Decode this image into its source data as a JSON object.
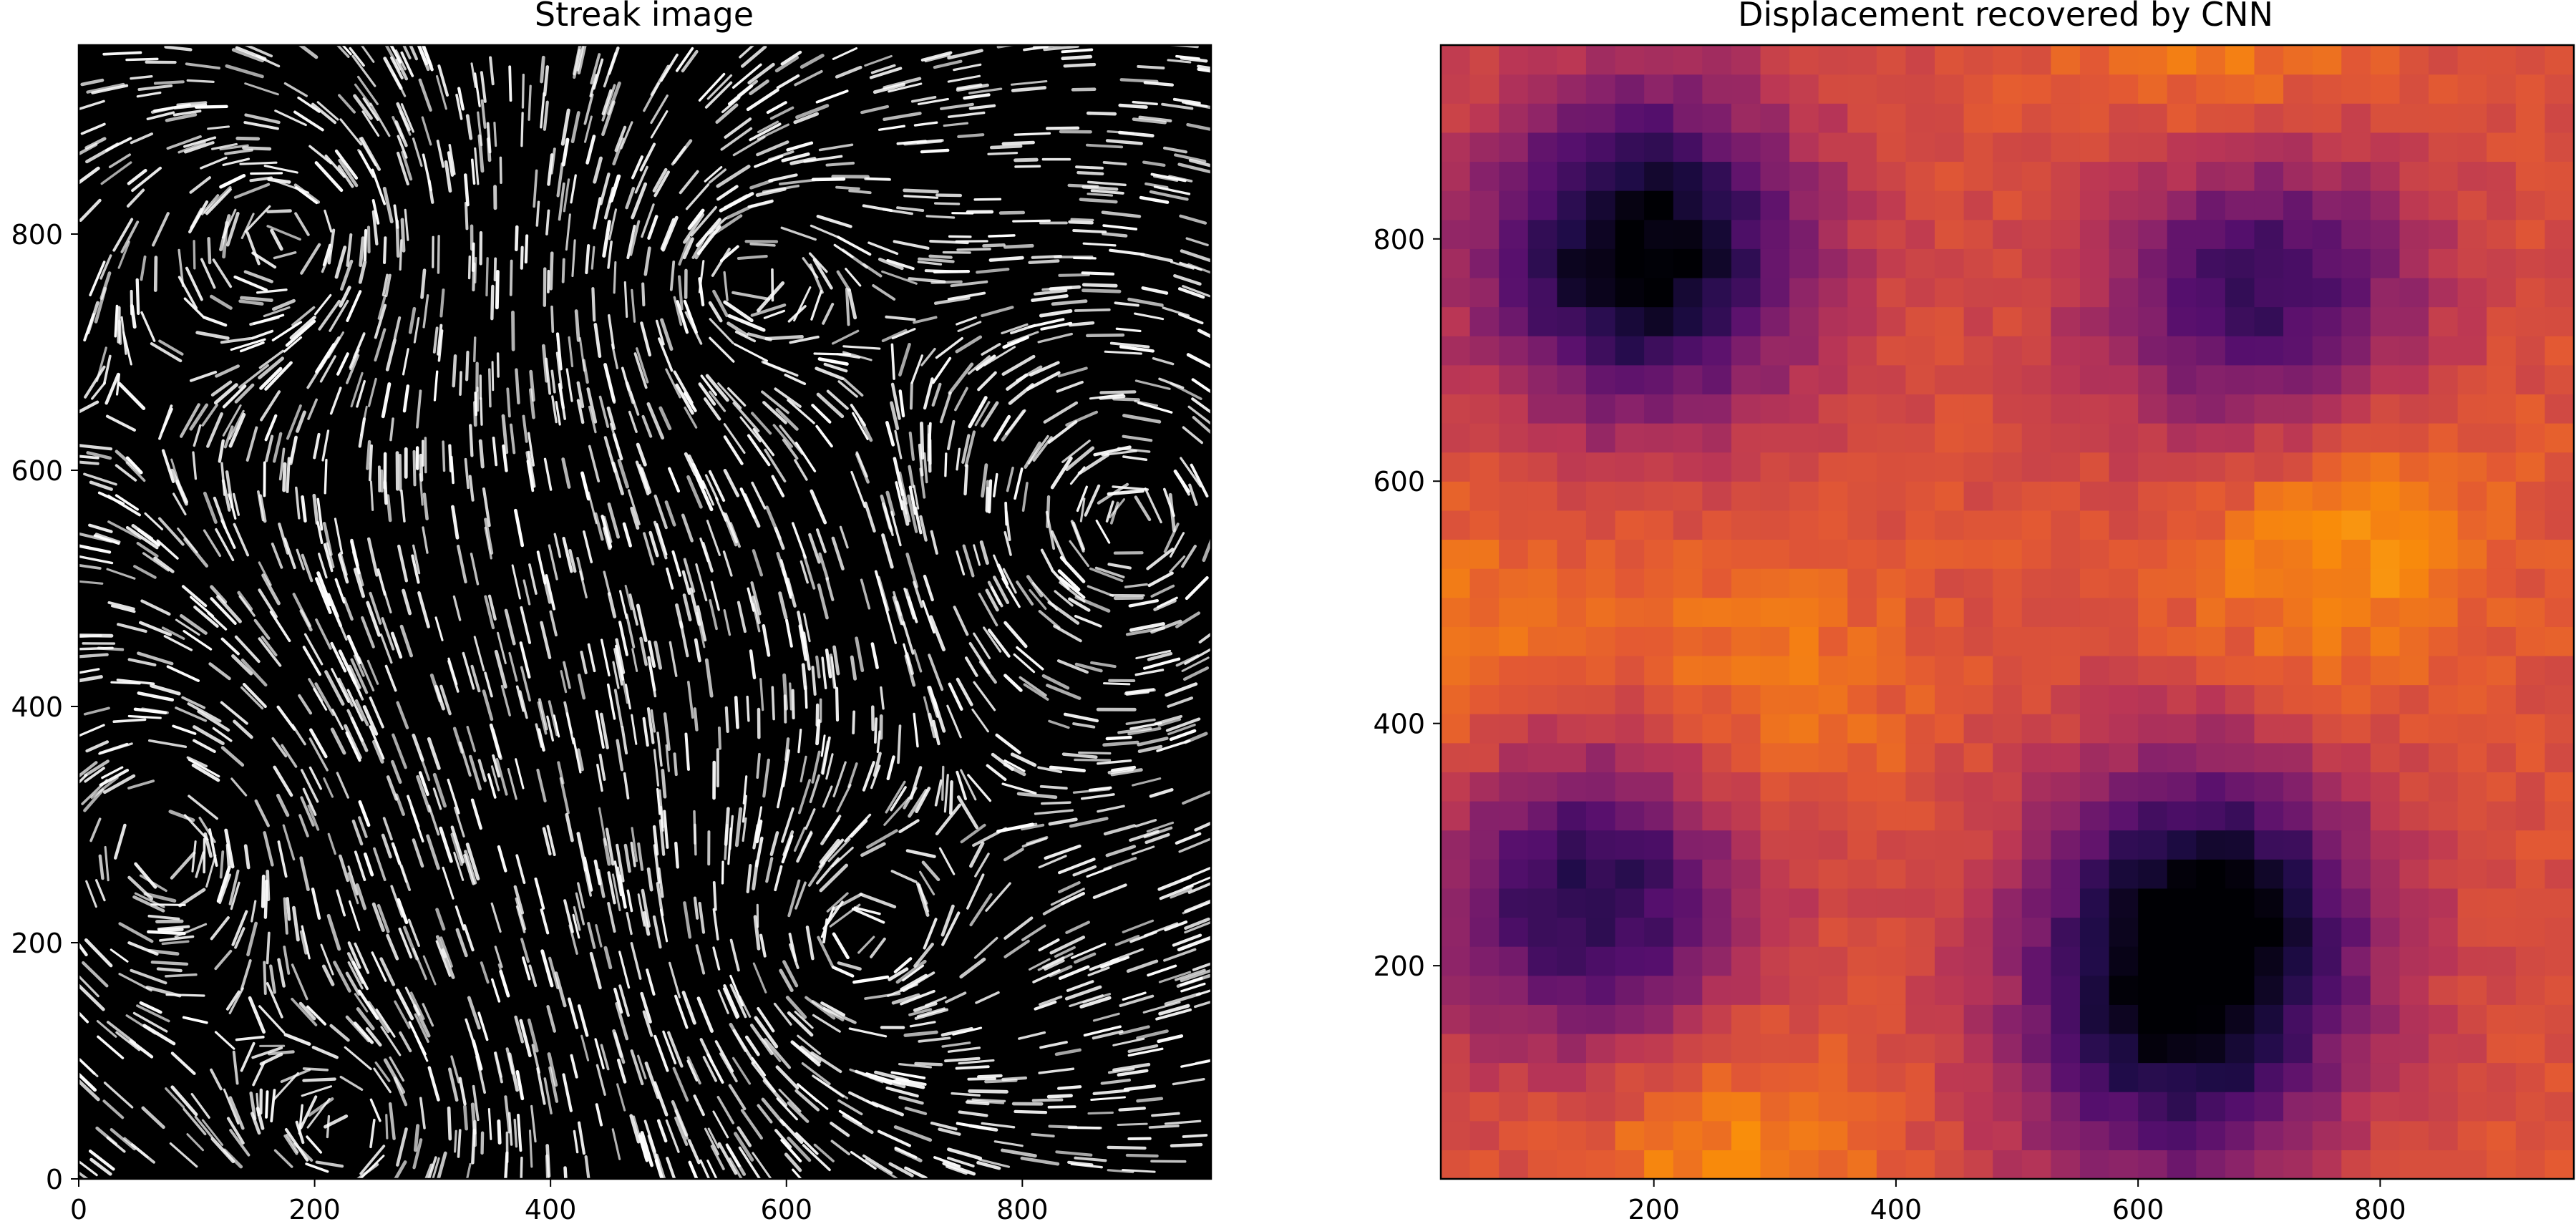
{
  "chart_data": [
    {
      "type": "heatmap",
      "title": "Streak image",
      "xlabel": "",
      "ylabel": "",
      "xlim": [
        0,
        960
      ],
      "ylim": [
        0,
        960
      ],
      "xticks": [
        0,
        200,
        400,
        600,
        800
      ],
      "yticks": [
        0,
        200,
        400,
        600,
        800
      ],
      "colormap": "gray",
      "background": "#000000",
      "streak_color": "#ffffff",
      "vortex_centers": [
        [
          180,
          800
        ],
        [
          650,
          200
        ],
        [
          80,
          280
        ],
        [
          560,
          760
        ],
        [
          230,
          40
        ],
        [
          890,
          560
        ]
      ]
    },
    {
      "type": "heatmap",
      "title": "Displacement recovered by CNN",
      "xlabel": "",
      "ylabel": "",
      "xlim": [
        24,
        960
      ],
      "ylim": [
        24,
        960
      ],
      "xticks": [
        200,
        400,
        600,
        800
      ],
      "yticks": [
        200,
        400,
        600,
        800
      ],
      "colormap": "inferno",
      "grid_size": [
        39,
        39
      ],
      "value_range": [
        0,
        1
      ],
      "low_regions": [
        {
          "x": 190,
          "y": 790,
          "depth": 0.62
        },
        {
          "x": 655,
          "y": 235,
          "depth": 0.62
        },
        {
          "x": 150,
          "y": 260,
          "depth": 0.48
        },
        {
          "x": 700,
          "y": 760,
          "depth": 0.45
        },
        {
          "x": 620,
          "y": 100,
          "depth": 0.25
        }
      ],
      "high_regions": [
        {
          "x": 760,
          "y": 560,
          "height": 0.18
        },
        {
          "x": 680,
          "y": 940,
          "height": 0.15
        },
        {
          "x": 280,
          "y": 420,
          "height": 0.12
        },
        {
          "x": 250,
          "y": 40,
          "height": 0.15
        },
        {
          "x": 30,
          "y": 450,
          "height": 0.12
        }
      ]
    }
  ]
}
